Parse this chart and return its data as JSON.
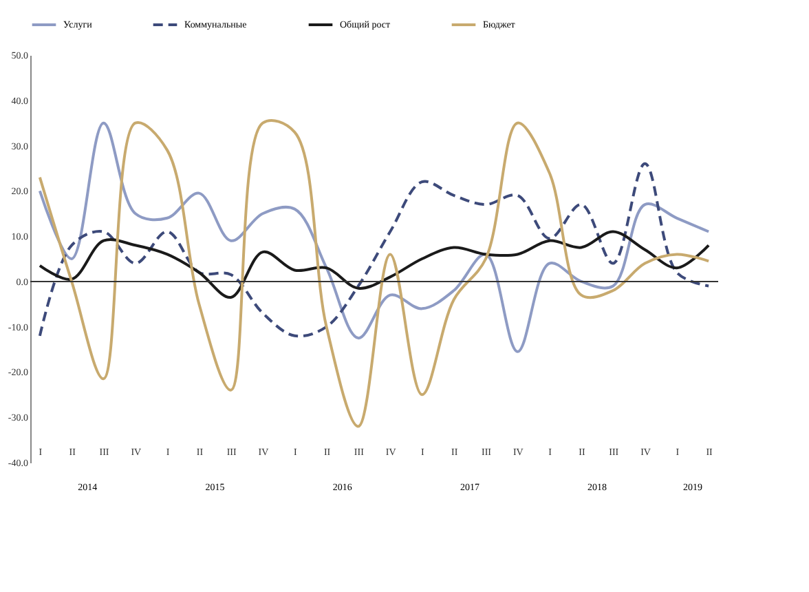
{
  "chart_data": {
    "type": "line",
    "categories": [
      "I",
      "II",
      "III",
      "IV",
      "I",
      "II",
      "III",
      "IV",
      "I",
      "II",
      "III",
      "IV",
      "I",
      "II",
      "III",
      "IV",
      "I",
      "II",
      "III",
      "IV",
      "I",
      "II"
    ],
    "annotations": [
      "2014",
      "2015",
      "2016",
      "2017",
      "2018",
      "2019"
    ],
    "series": [
      {
        "name": "Услуги",
        "color": "#8e9bc4",
        "line_style": "solid",
        "values": [
          20,
          5,
          35,
          15,
          14,
          19.5,
          9,
          15,
          16,
          3,
          -12.5,
          -3,
          -6,
          -2,
          6,
          -15.5,
          4,
          0,
          -1,
          17,
          14,
          11
        ]
      },
      {
        "name": "Коммунальные",
        "color": "#3d4a7a",
        "line_style": "dashed",
        "values": [
          -12,
          8,
          11,
          4,
          11,
          2,
          1.5,
          -7,
          -12,
          -10,
          -1,
          11,
          22,
          19,
          17,
          19,
          9.5,
          17,
          4,
          26,
          2,
          -1
        ]
      },
      {
        "name": "Общий рост",
        "color": "#1a1a1a",
        "line_style": "solid",
        "values": [
          3.5,
          0.5,
          9,
          8,
          6,
          2,
          -3.5,
          6.5,
          2.5,
          3,
          -1.5,
          1,
          5,
          7.5,
          6,
          6,
          9,
          7.5,
          11,
          7,
          3,
          8
        ]
      },
      {
        "name": "Бюджет",
        "color": "#c8aa6e",
        "line_style": "solid",
        "values": [
          23,
          0,
          -21.5,
          35,
          29,
          -5,
          -24,
          35,
          33,
          -10,
          -32,
          6,
          -25,
          -4,
          5,
          35,
          24,
          -3,
          -2,
          4,
          6,
          4.5
        ]
      }
    ],
    "ylim": [
      -40,
      50
    ],
    "yticks": [
      {
        "value": -40,
        "label": "-40.0"
      },
      {
        "value": -30,
        "label": "-30.0"
      },
      {
        "value": -20,
        "label": "-20.0"
      },
      {
        "value": -10,
        "label": "-10.0"
      },
      {
        "value": 0,
        "label": "0.0"
      },
      {
        "value": 10,
        "label": "10.0"
      },
      {
        "value": 20,
        "label": "20.0"
      },
      {
        "value": 30,
        "label": "30.0"
      },
      {
        "value": 40,
        "label": "40.0"
      },
      {
        "value": 50,
        "label": "50.0"
      }
    ],
    "ref_lines": [
      {
        "axis": "y",
        "value": 0,
        "color": "#333333"
      }
    ],
    "grid": false,
    "legend": "top",
    "marker": "none"
  }
}
